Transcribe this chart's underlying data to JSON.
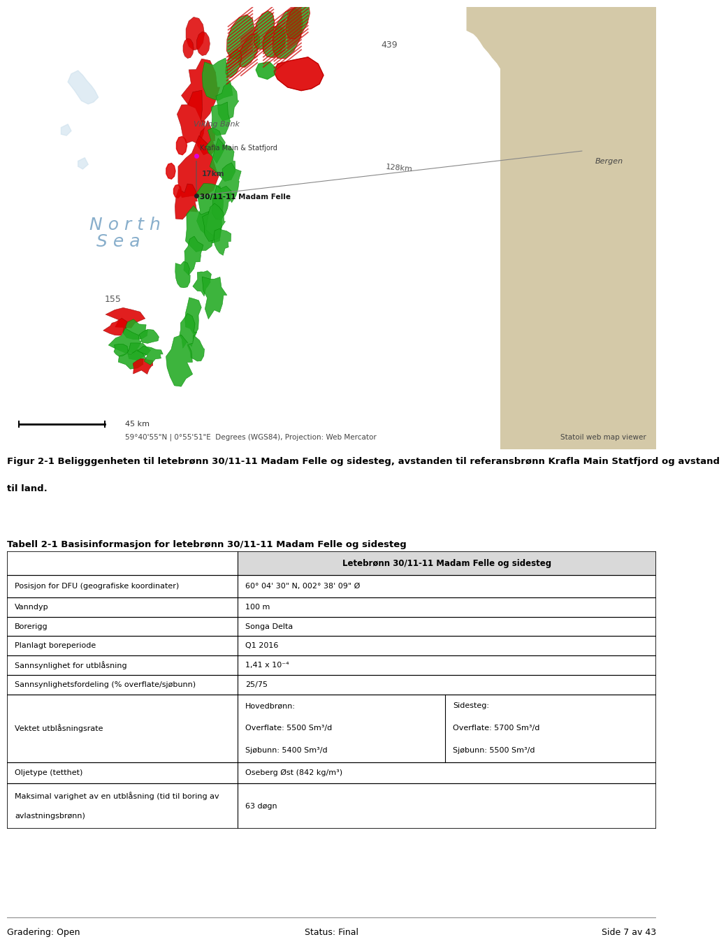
{
  "figure_caption_line1": "Figur 2-1 Beligggenheten til letebrønn 30/11-11 Madam Felle og sidesteg, avstanden til referansbrønn Krafla Main Statfjord og avstand",
  "figure_caption_line2": "til land.",
  "table_title": "Tabell 2-1 Basisinformasjon for letebrønn 30/11-11 Madam Felle og sidesteg",
  "table_header": "Letebrønn 30/11-11 Madam Felle og sidesteg",
  "footer_left": "Gradering: Open",
  "footer_center": "Status: Final",
  "footer_right": "Side 7 av 43",
  "bg_color": "#ffffff",
  "table_header_bg": "#d9d9d9",
  "table_line_color": "#000000",
  "text_color": "#000000",
  "map_sea_color": "#b8d4e8",
  "map_land_color": "#d4c9a8",
  "map_dark_land": "#c8bfa0",
  "map_shallow": "#cce0ed",
  "label_439": "439",
  "label_155": "155",
  "label_viking_bank": "Viking Bank",
  "label_krafla": "Krafla Main & Statfjord",
  "label_madam": "30/11-11 Madam Felle",
  "label_bergen": "Bergen",
  "label_north_sea_1": "N o r t h",
  "label_north_sea_2": "S e a",
  "label_17km": "17km",
  "label_128km": "128km",
  "scale_text": "45 km",
  "coord_text": "59°40'55\"N | 0°55'51\"E  Degrees (WGS84), Projection: Web Mercator",
  "statoil_text": "Statoil web map viewer"
}
